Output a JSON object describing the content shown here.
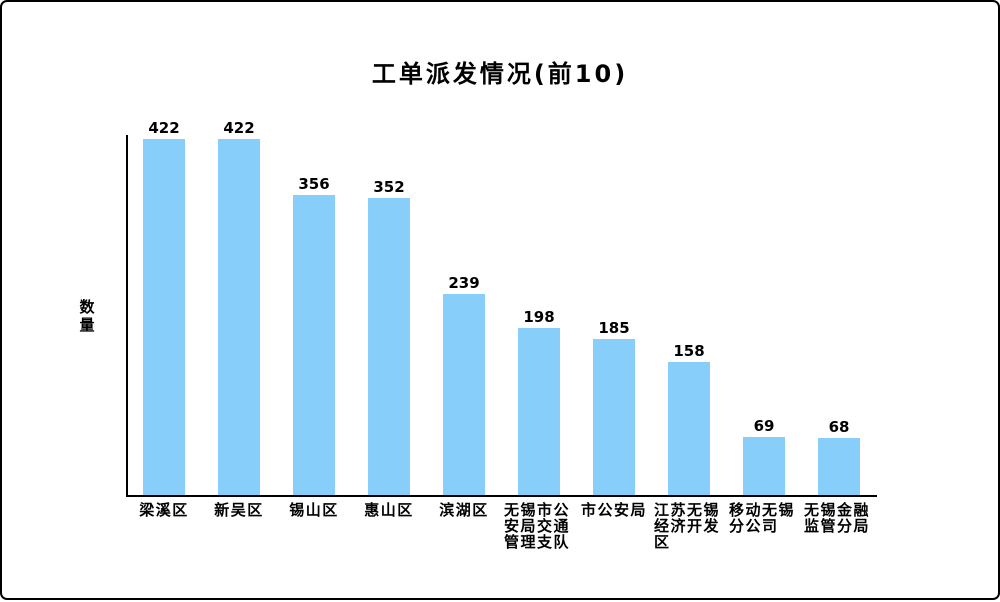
{
  "window": {
    "background_color": "#ffffff",
    "border_color": "#000000"
  },
  "chart_data": {
    "type": "bar",
    "title": "工单派发情况(前10)",
    "xlabel": "",
    "ylabel": "数量",
    "categories": [
      "梁溪区",
      "新吴区",
      "锡山区",
      "惠山区",
      "滨湖区",
      "无锡市公安局交通管理支队",
      "市公安局",
      "江苏无锡经济开发区",
      "移动无锡分公司",
      "无锡金融监管分局"
    ],
    "values": [
      422,
      422,
      356,
      352,
      239,
      198,
      185,
      158,
      69,
      68
    ],
    "value_labels_shown": true,
    "bar_color": "#87CEFA",
    "axis_color": "#000000",
    "text_color": "#000000",
    "ylim": [
      0,
      427
    ],
    "grid": false,
    "legend": false,
    "y_tick_labels_shown": false
  }
}
